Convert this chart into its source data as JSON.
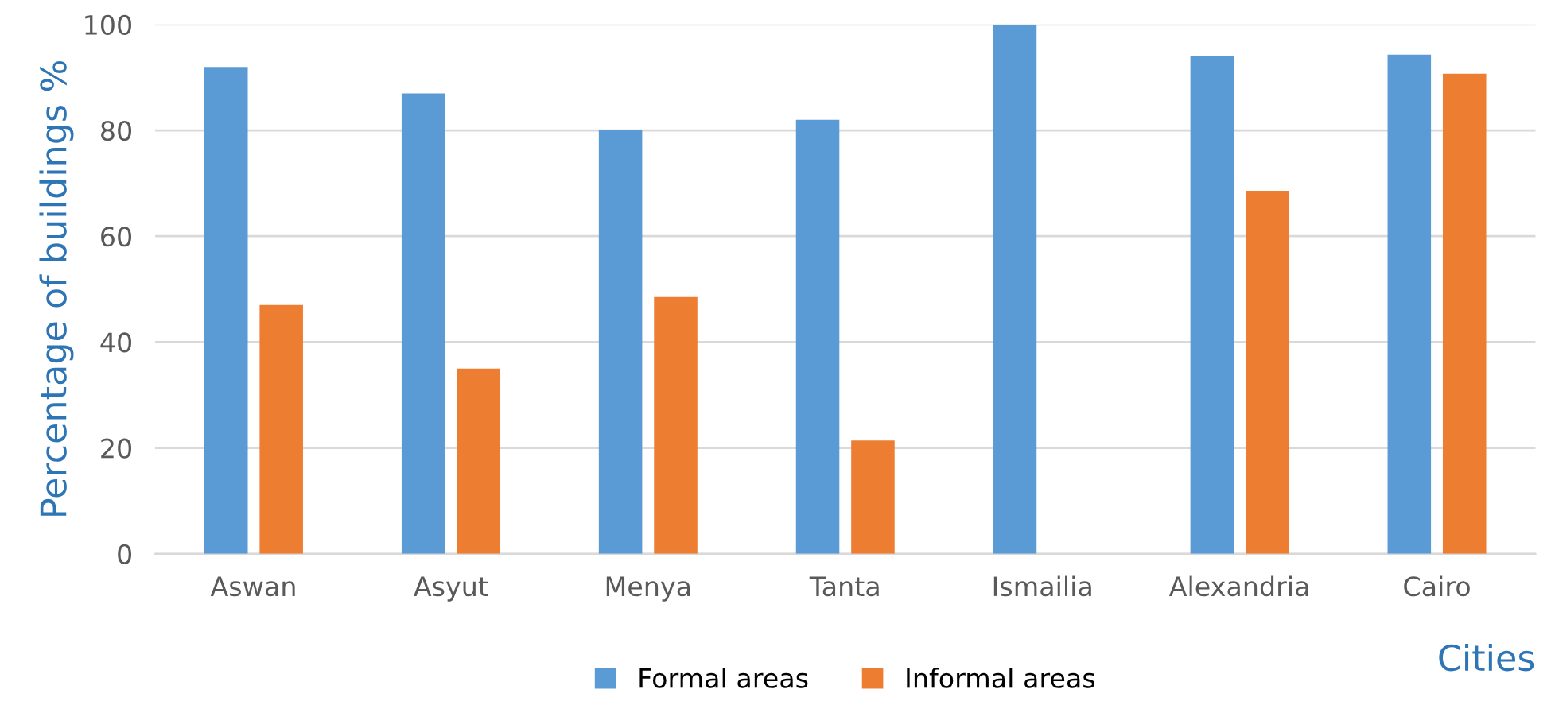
{
  "chart_data": {
    "type": "bar",
    "xlabel": "Cities",
    "ylabel": "Percentage of buildings %",
    "categories": [
      "Aswan",
      "Asyut",
      "Menya",
      "Tanta",
      "Ismailia",
      "Alexandria",
      "Cairo"
    ],
    "series": [
      {
        "name": "Formal areas",
        "color": "#5b9bd5",
        "values": [
          92,
          87,
          80,
          82,
          100,
          94,
          94.3
        ]
      },
      {
        "name": "Informal areas",
        "color": "#ed7d31",
        "values": [
          47,
          35,
          48.5,
          21.4,
          null,
          68.6,
          90.7
        ]
      }
    ],
    "ylim": [
      0,
      100
    ],
    "yticks": [
      0,
      20,
      40,
      60,
      80,
      100
    ],
    "grid": "y",
    "legend": "bottom"
  }
}
